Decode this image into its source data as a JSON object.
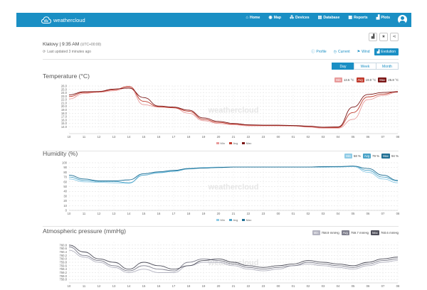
{
  "nav": {
    "brand": "weathercloud",
    "items": [
      {
        "icon": "home-icon",
        "glyph": "⌂",
        "label": "Home"
      },
      {
        "icon": "globe-icon",
        "glyph": "◉",
        "label": "Map"
      },
      {
        "icon": "devices-icon",
        "glyph": "⁂",
        "label": "Devices"
      },
      {
        "icon": "database-icon",
        "glyph": "▤",
        "label": "Database"
      },
      {
        "icon": "reports-icon",
        "glyph": "▦",
        "label": "Reports"
      },
      {
        "icon": "plots-icon",
        "glyph": "▟",
        "label": "Plots"
      }
    ]
  },
  "station": {
    "name_time": "Klatovy | 9:35 AM",
    "timezone": "(UTC+00:00)",
    "updated": "Last updated 3 minutes ago"
  },
  "views": [
    {
      "icon": "info-icon",
      "glyph": "ⓘ",
      "label": "Profile",
      "active": false
    },
    {
      "icon": "clock-icon",
      "glyph": "◷",
      "label": "Current",
      "active": false
    },
    {
      "icon": "flag-icon",
      "glyph": "⚑",
      "label": "Wind",
      "active": false
    },
    {
      "icon": "chart-icon",
      "glyph": "▟",
      "label": "Evolution",
      "active": true
    }
  ],
  "periods": [
    {
      "label": "Day",
      "active": true
    },
    {
      "label": "Week",
      "active": false
    },
    {
      "label": "Month",
      "active": false
    }
  ],
  "watermark": "weathercloud",
  "charts": [
    {
      "title": "Temperature (°C)",
      "badges": [
        {
          "label": "Min",
          "value": "13.5 °C",
          "color": "#e89a9a"
        },
        {
          "label": "Avg",
          "value": "19.0 °C",
          "color": "#c0392b"
        },
        {
          "label": "Max",
          "value": "25.8 °C",
          "color": "#7a1515"
        }
      ]
    },
    {
      "title": "Humidity (%)",
      "badges": [
        {
          "label": "Min",
          "value": "58 %",
          "color": "#8ecbe6"
        },
        {
          "label": "Avg",
          "value": "79 %",
          "color": "#4aa3c8"
        },
        {
          "label": "Max",
          "value": "94 %",
          "color": "#1f6f94"
        }
      ]
    },
    {
      "title": "Atmospheric pressure (mmHg)",
      "badges": [
        {
          "label": "Min",
          "value": "758.9 mmHg",
          "color": "#b3b3c0"
        },
        {
          "label": "Avg",
          "value": "759.7 mmHg",
          "color": "#7e7e8c"
        },
        {
          "label": "Max",
          "value": "760.6 mmHg",
          "color": "#4e4e5a"
        }
      ]
    }
  ],
  "chart_data": [
    {
      "type": "line",
      "title": "Temperature (°C)",
      "x": [
        "10",
        "11",
        "12",
        "13",
        "14",
        "15",
        "16",
        "17",
        "18",
        "19",
        "20",
        "21",
        "22",
        "23",
        "00",
        "01",
        "02",
        "03",
        "04",
        "05",
        "06",
        "07",
        "08"
      ],
      "ylim": [
        12,
        26
      ],
      "yticks": [
        "26.0",
        "25.0",
        "24.0",
        "23.0",
        "22.0",
        "21.0",
        "20.0",
        "19.0",
        "18.0",
        "17.0",
        "16.0",
        "15.0",
        "14.0"
      ],
      "series": [
        {
          "name": "Min",
          "color": "#e89a9a",
          "values": [
            22.2,
            23.8,
            24.2,
            24.6,
            25.6,
            20.5,
            19.8,
            19.6,
            18.0,
            15.8,
            15.0,
            14.6,
            14.3,
            14.3,
            14.3,
            14.3,
            13.9,
            13.6,
            13.6,
            16.2,
            22.0,
            23.2,
            24.2
          ]
        },
        {
          "name": "Avg",
          "color": "#c0392b",
          "values": [
            22.9,
            24.1,
            24.3,
            24.9,
            25.9,
            21.5,
            19.9,
            19.6,
            18.6,
            16.2,
            15.3,
            14.8,
            14.5,
            14.4,
            14.4,
            14.3,
            14.1,
            13.8,
            13.8,
            18.2,
            22.8,
            23.6,
            24.4
          ]
        },
        {
          "name": "Max",
          "color": "#7a1515",
          "values": [
            23.4,
            24.3,
            24.4,
            25.1,
            25.4,
            22.6,
            20.1,
            19.8,
            18.9,
            16.6,
            15.6,
            15.0,
            14.6,
            14.5,
            14.5,
            14.4,
            14.2,
            13.9,
            14.0,
            19.8,
            23.5,
            24.1,
            24.3
          ]
        }
      ]
    },
    {
      "type": "line",
      "title": "Humidity (%)",
      "x": [
        "10",
        "11",
        "12",
        "13",
        "14",
        "15",
        "16",
        "17",
        "18",
        "19",
        "20",
        "21",
        "22",
        "23",
        "00",
        "01",
        "02",
        "03",
        "04",
        "05",
        "06",
        "07",
        "08"
      ],
      "ylim": [
        0,
        100
      ],
      "yticks": [
        "100",
        "90",
        "80",
        "70",
        "60",
        "50",
        "40",
        "30",
        "20",
        "10",
        "0"
      ],
      "series": [
        {
          "name": "Min",
          "color": "#8ecbe6",
          "values": [
            66,
            60,
            59,
            58,
            57,
            77,
            80,
            83,
            88,
            90,
            91,
            91,
            91,
            91,
            91,
            91,
            91,
            91,
            91,
            92,
            80,
            66,
            58
          ]
        },
        {
          "name": "Avg",
          "color": "#4aa3c8",
          "values": [
            70,
            63,
            61,
            61,
            58,
            74,
            79,
            82,
            87,
            89,
            90,
            91,
            91,
            91,
            91,
            91,
            91,
            91,
            92,
            93,
            84,
            70,
            62
          ]
        },
        {
          "name": "Max",
          "color": "#1f6f94",
          "values": [
            74,
            66,
            62,
            62,
            64,
            77,
            81,
            84,
            88,
            89,
            90,
            91,
            91,
            91,
            91,
            91,
            91,
            92,
            92,
            93,
            88,
            74,
            63
          ]
        }
      ]
    },
    {
      "type": "line",
      "title": "Atmospheric pressure (mmHg)",
      "x": [
        "10",
        "11",
        "12",
        "13",
        "14",
        "15",
        "16",
        "17",
        "18",
        "19",
        "20",
        "21",
        "22",
        "23",
        "00",
        "01",
        "02",
        "03",
        "04",
        "05",
        "06",
        "07",
        "08"
      ],
      "ylim": [
        758.6,
        761.0
      ],
      "yticks": [
        "760.8",
        "760.6",
        "760.4",
        "760.2",
        "760.0",
        "759.8",
        "759.6",
        "759.4",
        "759.2",
        "759.0",
        "758.8"
      ],
      "series": [
        {
          "name": "Min",
          "color": "#b3b3c0",
          "values": [
            760.5,
            760.1,
            759.8,
            759.5,
            759.2,
            759.4,
            759.2,
            759.2,
            759.6,
            759.8,
            759.8,
            759.6,
            759.4,
            759.3,
            759.4,
            759.6,
            759.7,
            759.6,
            759.5,
            759.4,
            759.6,
            759.8,
            759.9
          ]
        },
        {
          "name": "Avg",
          "color": "#7e7e8c",
          "values": [
            760.7,
            760.2,
            759.9,
            759.6,
            759.3,
            759.6,
            759.4,
            759.3,
            759.8,
            760.0,
            759.9,
            759.7,
            759.5,
            759.4,
            759.5,
            759.6,
            759.8,
            759.7,
            759.6,
            759.5,
            759.7,
            759.9,
            760.0
          ]
        },
        {
          "name": "Max",
          "color": "#4e4e5a",
          "values": [
            760.8,
            760.4,
            760.0,
            759.8,
            759.4,
            759.8,
            759.6,
            759.4,
            759.6,
            759.9,
            760.0,
            759.8,
            759.6,
            759.5,
            759.6,
            759.7,
            759.9,
            759.8,
            759.7,
            759.6,
            759.8,
            760.0,
            760.1
          ]
        }
      ]
    }
  ]
}
